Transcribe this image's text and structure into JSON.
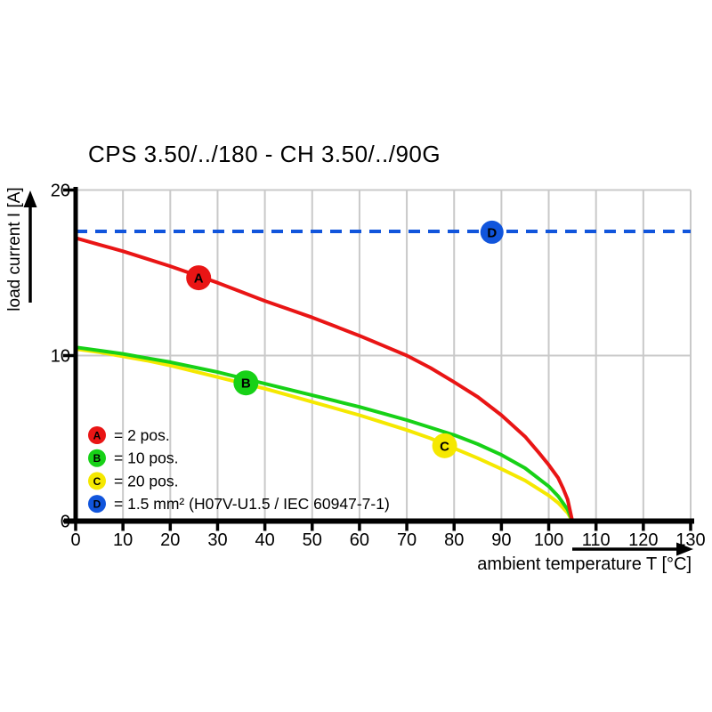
{
  "title": "CPS 3.50/../180 - CH 3.50/../90G",
  "chart_data": {
    "type": "line",
    "title": "CPS 3.50/../180 - CH 3.50/../90G",
    "xlabel": "ambient temperature T [°C]",
    "ylabel": "load current I [A]",
    "xlim": [
      0,
      130
    ],
    "ylim": [
      0,
      20
    ],
    "x_ticks": [
      0,
      10,
      20,
      30,
      40,
      50,
      60,
      70,
      80,
      90,
      100,
      110,
      120,
      130
    ],
    "y_ticks": [
      0,
      10,
      20
    ],
    "grid": {
      "vertical_every": 10,
      "horizontal_lines": [
        10,
        20
      ],
      "color": "#c9c9c9"
    },
    "legend_position": "inside bottom-left",
    "colors": {
      "A": "#e91515",
      "B": "#17d117",
      "C": "#f5e800",
      "D": "#1155dc",
      "axis": "#000000"
    },
    "series": [
      {
        "id": "D",
        "name": "1.5 mm² (H07V-U1.5 / IEC 60947-7-1)",
        "color": "#1155dc",
        "style": "dashed",
        "width": 4,
        "points": [
          [
            0,
            17.5
          ],
          [
            130,
            17.5
          ]
        ],
        "marker": {
          "label": "D",
          "x": 88,
          "y": 17.45,
          "r": 13
        }
      },
      {
        "id": "C",
        "name": "20 pos.",
        "color": "#f5e800",
        "style": "solid",
        "width": 4,
        "points": [
          [
            0,
            10.4
          ],
          [
            5,
            10.2
          ],
          [
            10,
            9.95
          ],
          [
            15,
            9.7
          ],
          [
            20,
            9.4
          ],
          [
            25,
            9.05
          ],
          [
            30,
            8.7
          ],
          [
            35,
            8.35
          ],
          [
            40,
            8.0
          ],
          [
            45,
            7.6
          ],
          [
            50,
            7.2
          ],
          [
            55,
            6.8
          ],
          [
            60,
            6.4
          ],
          [
            65,
            5.95
          ],
          [
            70,
            5.5
          ],
          [
            75,
            5.0
          ],
          [
            80,
            4.4
          ],
          [
            85,
            3.8
          ],
          [
            90,
            3.15
          ],
          [
            95,
            2.45
          ],
          [
            100,
            1.55
          ],
          [
            102,
            1.1
          ],
          [
            104,
            0.5
          ],
          [
            105,
            0
          ]
        ],
        "marker": {
          "label": "C",
          "x": 78,
          "y": 4.55,
          "r": 14
        }
      },
      {
        "id": "B",
        "name": "10 pos.",
        "color": "#17d117",
        "style": "solid",
        "width": 4,
        "points": [
          [
            0,
            10.5
          ],
          [
            5,
            10.3
          ],
          [
            10,
            10.1
          ],
          [
            15,
            9.85
          ],
          [
            20,
            9.6
          ],
          [
            25,
            9.3
          ],
          [
            30,
            9.0
          ],
          [
            35,
            8.65
          ],
          [
            40,
            8.3
          ],
          [
            45,
            7.95
          ],
          [
            50,
            7.6
          ],
          [
            55,
            7.25
          ],
          [
            60,
            6.9
          ],
          [
            65,
            6.5
          ],
          [
            70,
            6.1
          ],
          [
            75,
            5.65
          ],
          [
            80,
            5.2
          ],
          [
            85,
            4.65
          ],
          [
            90,
            4.0
          ],
          [
            95,
            3.2
          ],
          [
            100,
            2.1
          ],
          [
            102,
            1.5
          ],
          [
            104,
            0.7
          ],
          [
            105,
            0
          ]
        ],
        "marker": {
          "label": "B",
          "x": 36,
          "y": 8.35,
          "r": 14
        }
      },
      {
        "id": "A",
        "name": "2 pos.",
        "color": "#e91515",
        "style": "solid",
        "width": 4,
        "points": [
          [
            0,
            17.1
          ],
          [
            5,
            16.7
          ],
          [
            10,
            16.3
          ],
          [
            15,
            15.85
          ],
          [
            20,
            15.4
          ],
          [
            25,
            14.9
          ],
          [
            30,
            14.4
          ],
          [
            35,
            13.85
          ],
          [
            40,
            13.3
          ],
          [
            45,
            12.8
          ],
          [
            50,
            12.3
          ],
          [
            55,
            11.75
          ],
          [
            60,
            11.2
          ],
          [
            65,
            10.6
          ],
          [
            70,
            10.0
          ],
          [
            75,
            9.25
          ],
          [
            80,
            8.4
          ],
          [
            85,
            7.5
          ],
          [
            90,
            6.4
          ],
          [
            95,
            5.1
          ],
          [
            98,
            4.1
          ],
          [
            100,
            3.4
          ],
          [
            102,
            2.6
          ],
          [
            103,
            2.0
          ],
          [
            104,
            1.3
          ],
          [
            105,
            0
          ]
        ],
        "marker": {
          "label": "A",
          "x": 26,
          "y": 14.7,
          "r": 14
        }
      }
    ],
    "legend": [
      {
        "label": "A",
        "color": "#e91515",
        "text": "= 2 pos."
      },
      {
        "label": "B",
        "color": "#17d117",
        "text": "= 10 pos."
      },
      {
        "label": "C",
        "color": "#f5e800",
        "text": "= 20 pos."
      },
      {
        "label": "D",
        "color": "#1155dc",
        "text": "= 1.5 mm² (H07V-U1.5 / IEC 60947-7-1)"
      }
    ]
  }
}
